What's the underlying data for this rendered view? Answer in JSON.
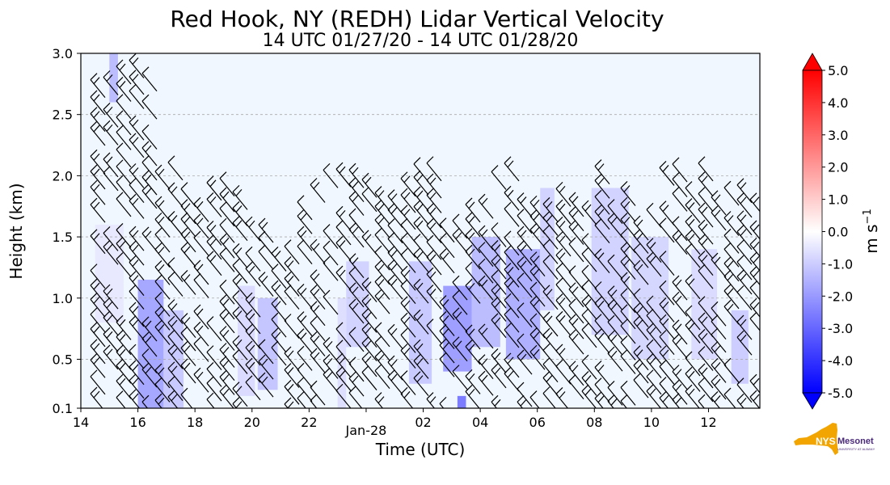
{
  "chart_data": {
    "type": "heatmap",
    "title": "Red Hook, NY (REDH) Lidar Vertical Velocity",
    "subtitle": "14 UTC 01/27/20 - 14 UTC 01/28/20",
    "xlabel": "Time (UTC)",
    "ylabel": "Height (km)",
    "x_ticks": [
      "14",
      "16",
      "18",
      "20",
      "22",
      "Jan-28",
      "02",
      "04",
      "06",
      "08",
      "10",
      "12"
    ],
    "x_tick_hours": [
      14,
      16,
      18,
      20,
      22,
      24,
      26,
      28,
      30,
      32,
      34,
      36
    ],
    "xlim": [
      14,
      37.8
    ],
    "y_ticks": [
      "0.1",
      "0.5",
      "1.0",
      "1.5",
      "2.0",
      "2.5",
      "3.0"
    ],
    "y_tick_values": [
      0.1,
      0.5,
      1.0,
      1.5,
      2.0,
      2.5,
      3.0
    ],
    "ylim": [
      0.1,
      3.0
    ],
    "grid": "horizontal dashed",
    "colorbar": {
      "label": "m s",
      "label_superscript": "−1",
      "ticks": [
        "5.0",
        "4.0",
        "3.0",
        "2.0",
        "1.0",
        "0.0",
        "-1.0",
        "-2.0",
        "-3.0",
        "-4.0",
        "-5.0"
      ],
      "tick_values": [
        5,
        4,
        3,
        2,
        1,
        0,
        -1,
        -2,
        -3,
        -4,
        -5
      ],
      "min": -5.0,
      "max": 5.0,
      "colors": {
        "high": "#ff0000",
        "mid": "#ffffff",
        "low": "#0000ff"
      }
    },
    "background_color": "#f0f7ff",
    "downdraft_color": "#7070f0",
    "wind_barb_color": "#000000",
    "downdraft_regions": [
      {
        "t0": 16.0,
        "t1": 16.9,
        "h0": 0.1,
        "h1": 1.15,
        "w": -2.0
      },
      {
        "t0": 15.0,
        "t1": 15.3,
        "h0": 2.6,
        "h1": 3.0,
        "w": -1.5
      },
      {
        "t0": 16.9,
        "t1": 17.6,
        "h0": 0.1,
        "h1": 0.9,
        "w": -1.2
      },
      {
        "t0": 19.5,
        "t1": 20.1,
        "h0": 0.2,
        "h1": 1.1,
        "w": -0.8
      },
      {
        "t0": 20.2,
        "t1": 20.9,
        "h0": 0.25,
        "h1": 1.0,
        "w": -1.3
      },
      {
        "t0": 23.3,
        "t1": 24.1,
        "h0": 0.6,
        "h1": 1.3,
        "w": -1.0
      },
      {
        "t0": 25.5,
        "t1": 26.3,
        "h0": 0.3,
        "h1": 1.3,
        "w": -1.2
      },
      {
        "t0": 26.7,
        "t1": 27.7,
        "h0": 0.4,
        "h1": 1.1,
        "w": -2.2
      },
      {
        "t0": 27.7,
        "t1": 28.7,
        "h0": 0.6,
        "h1": 1.5,
        "w": -1.5
      },
      {
        "t0": 28.9,
        "t1": 30.1,
        "h0": 0.5,
        "h1": 1.4,
        "w": -1.8
      },
      {
        "t0": 30.1,
        "t1": 30.6,
        "h0": 0.9,
        "h1": 1.9,
        "w": -1.0
      },
      {
        "t0": 31.9,
        "t1": 33.2,
        "h0": 0.7,
        "h1": 1.9,
        "w": -1.0
      },
      {
        "t0": 33.3,
        "t1": 34.6,
        "h0": 0.5,
        "h1": 1.5,
        "w": -0.9
      },
      {
        "t0": 35.4,
        "t1": 36.3,
        "h0": 0.5,
        "h1": 1.4,
        "w": -0.8
      },
      {
        "t0": 36.8,
        "t1": 37.4,
        "h0": 0.3,
        "h1": 0.9,
        "w": -1.1
      },
      {
        "t0": 27.2,
        "t1": 27.5,
        "h0": 0.1,
        "h1": 0.2,
        "w": -3.0
      },
      {
        "t0": 23.0,
        "t1": 23.3,
        "h0": 0.1,
        "h1": 1.0,
        "w": -0.7
      },
      {
        "t0": 14.5,
        "t1": 15.5,
        "h0": 0.8,
        "h1": 1.6,
        "w": -0.5
      }
    ],
    "logo_text": "NYS",
    "logo_subtext": "Mesonet",
    "logo_caption": "UNIVERSITY AT ALBANY"
  }
}
